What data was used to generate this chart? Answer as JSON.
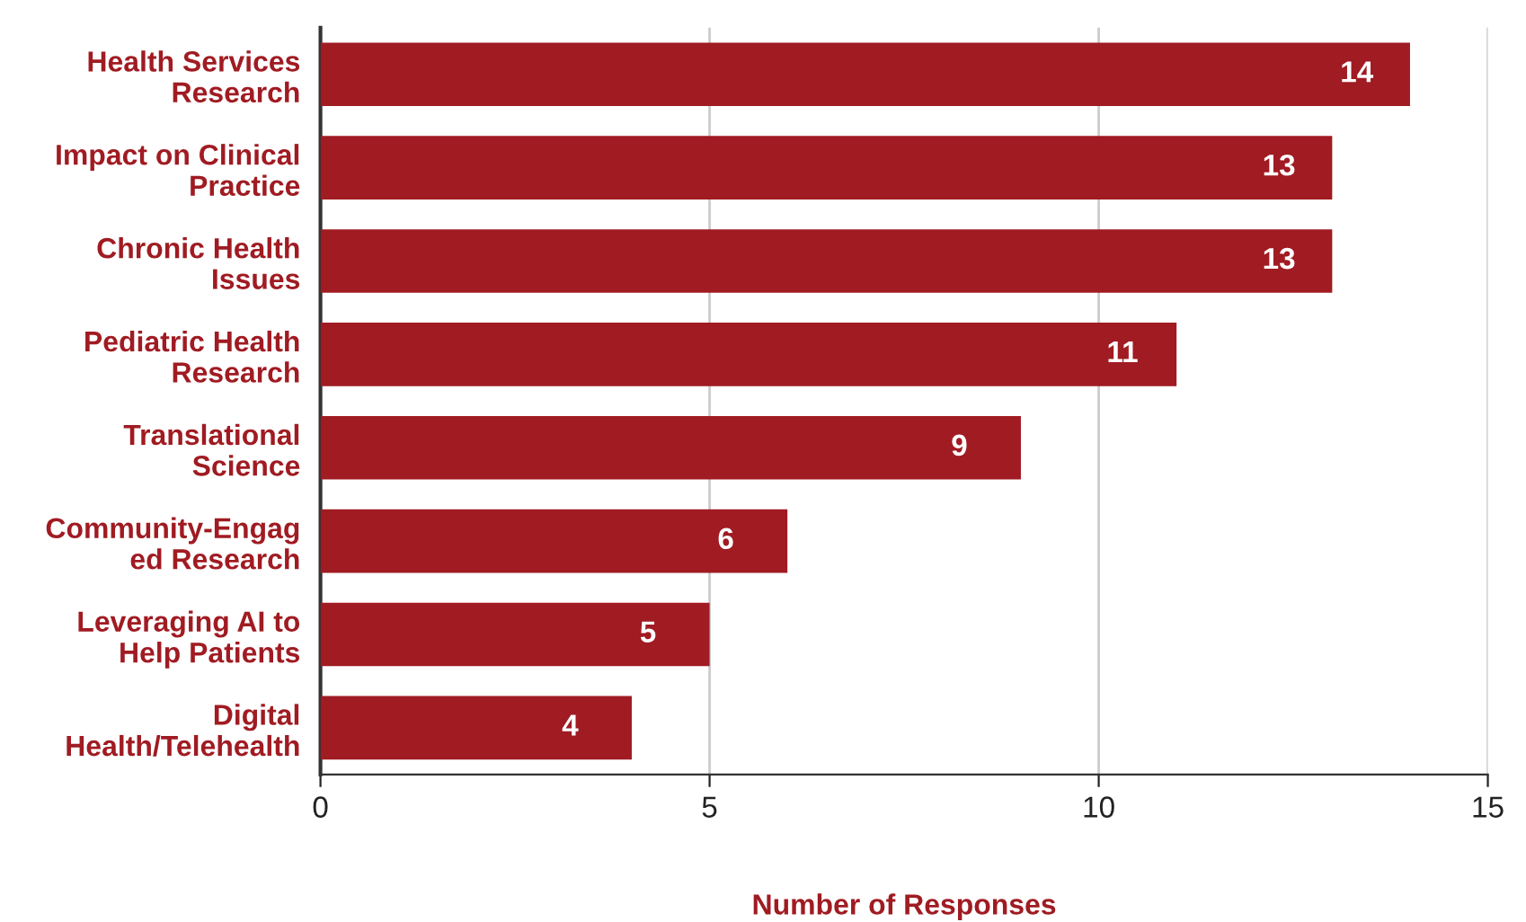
{
  "chart_data": {
    "type": "bar",
    "orientation": "horizontal",
    "categories": [
      "Health Services\nResearch",
      "Impact on Clinical\nPractice",
      "Chronic Health\nIssues",
      "Pediatric Health\nResearch",
      "Translational\nScience",
      "Community-Engag\ned Research",
      "Leveraging AI to\nHelp Patients",
      "Digital\nHealth/Telehealth"
    ],
    "values": [
      14,
      13,
      13,
      11,
      9,
      6,
      5,
      4
    ],
    "color": "#a01b22",
    "xlabel": "Number of Responses",
    "xlim": [
      0,
      15
    ],
    "xticks": [
      0,
      5,
      10,
      15
    ],
    "grid": "x",
    "data_labels": true
  }
}
